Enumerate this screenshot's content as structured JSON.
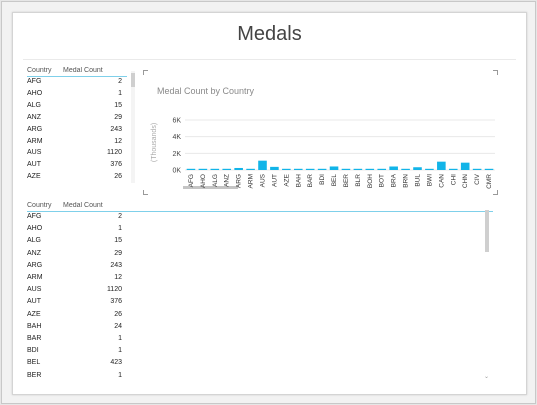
{
  "page": {
    "title": "Medals"
  },
  "small_table": {
    "headers": [
      "Country",
      "Medal Count"
    ],
    "rows": [
      [
        "AFG",
        "2"
      ],
      [
        "AHO",
        "1"
      ],
      [
        "ALG",
        "15"
      ],
      [
        "ANZ",
        "29"
      ],
      [
        "ARG",
        "243"
      ],
      [
        "ARM",
        "12"
      ],
      [
        "AUS",
        "1120"
      ],
      [
        "AUT",
        "376"
      ],
      [
        "AZE",
        "26"
      ]
    ]
  },
  "chart": {
    "title": "Medal Count by Country",
    "y_axis_label": "(Thousands)",
    "colors": {
      "bar": "#12b4e8",
      "gridline": "#e8e8e8"
    }
  },
  "chart_data": {
    "type": "bar",
    "categories": [
      "AFG",
      "AHO",
      "ALG",
      "ANZ",
      "ARG",
      "ARM",
      "AUS",
      "AUT",
      "AZE",
      "BAH",
      "BAR",
      "BDI",
      "BEL",
      "BER",
      "BLR",
      "BOH",
      "BOT",
      "BRA",
      "BRN",
      "BUL",
      "BWI",
      "CAN",
      "CHI",
      "CHN",
      "CIV",
      "CMR"
    ],
    "values": [
      2,
      1,
      15,
      29,
      243,
      12,
      1120,
      376,
      26,
      24,
      1,
      1,
      423,
      1,
      6,
      3,
      1,
      420,
      1,
      331,
      5,
      1000,
      33,
      880,
      4,
      1
    ],
    "ytick_labels": [
      "0K",
      "2K",
      "4K",
      "6K"
    ],
    "yticks": [
      0,
      2000,
      4000,
      6000
    ],
    "ylim": [
      0,
      6600
    ],
    "ylabel": "(Thousands)",
    "title": "Medal Count by Country",
    "grid": true
  },
  "large_table": {
    "headers": [
      "Country",
      "Medal Count"
    ],
    "rows": [
      [
        "AFG",
        "2"
      ],
      [
        "AHO",
        "1"
      ],
      [
        "ALG",
        "15"
      ],
      [
        "ANZ",
        "29"
      ],
      [
        "ARG",
        "243"
      ],
      [
        "ARM",
        "12"
      ],
      [
        "AUS",
        "1120"
      ],
      [
        "AUT",
        "376"
      ],
      [
        "AZE",
        "26"
      ],
      [
        "BAH",
        "24"
      ],
      [
        "BAR",
        "1"
      ],
      [
        "BDI",
        "1"
      ],
      [
        "BEL",
        "423"
      ],
      [
        "BER",
        "1"
      ]
    ]
  }
}
